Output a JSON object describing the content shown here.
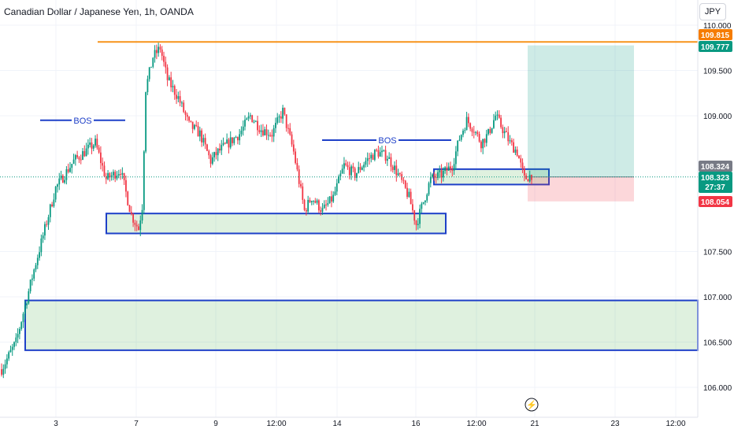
{
  "header": {
    "title": "Canadian Dollar / Japanese Yen, 1h, OANDA",
    "currency": "JPY"
  },
  "chart_data": {
    "type": "candlestick",
    "x_ticks": [
      "3",
      "7",
      "9",
      "12:00",
      "14",
      "16",
      "12:00",
      "21",
      "23",
      "12:00"
    ],
    "y_ticks": [
      "106.000",
      "106.500",
      "107.000",
      "107.500",
      "109.000",
      "109.500",
      "110.000"
    ],
    "ylim": [
      105.9,
      110.1
    ],
    "price_labels": {
      "resistance": "109.815",
      "take_profit": "109.777",
      "last": "108.324",
      "current": "108.323",
      "countdown": "27:37",
      "stop_loss": "108.054"
    },
    "annotations": [
      "BOS",
      "BOS"
    ],
    "levels": {
      "resistance": 109.815,
      "take_profit": 109.777,
      "entry": 108.324,
      "stop_loss": 108.054
    },
    "zones": [
      {
        "low": 107.7,
        "high": 107.92
      },
      {
        "low": 108.24,
        "high": 108.41
      },
      {
        "low": 106.41,
        "high": 106.96
      }
    ],
    "price_path": [
      [
        0,
        106.2
      ],
      [
        8,
        106.5
      ],
      [
        18,
        107.3
      ],
      [
        30,
        108.2
      ],
      [
        40,
        108.5
      ],
      [
        52,
        108.7
      ],
      [
        58,
        108.3
      ],
      [
        66,
        108.4
      ],
      [
        72,
        107.9
      ],
      [
        76,
        107.75
      ],
      [
        78,
        108.0
      ],
      [
        80,
        109.3
      ],
      [
        84,
        109.65
      ],
      [
        88,
        109.75
      ],
      [
        92,
        109.4
      ],
      [
        98,
        109.2
      ],
      [
        104,
        108.9
      ],
      [
        110,
        108.8
      ],
      [
        116,
        108.5
      ],
      [
        120,
        108.6
      ],
      [
        126,
        108.7
      ],
      [
        132,
        108.8
      ],
      [
        138,
        109.0
      ],
      [
        144,
        108.85
      ],
      [
        150,
        108.8
      ],
      [
        156,
        109.05
      ],
      [
        162,
        108.6
      ],
      [
        168,
        107.95
      ],
      [
        172,
        108.1
      ],
      [
        178,
        107.95
      ],
      [
        184,
        108.1
      ],
      [
        190,
        108.45
      ],
      [
        196,
        108.35
      ],
      [
        202,
        108.5
      ],
      [
        208,
        108.6
      ],
      [
        214,
        108.55
      ],
      [
        220,
        108.35
      ],
      [
        226,
        108.1
      ],
      [
        230,
        107.8
      ],
      [
        234,
        108.05
      ],
      [
        238,
        108.3
      ],
      [
        244,
        108.35
      ],
      [
        250,
        108.45
      ],
      [
        254,
        108.75
      ],
      [
        258,
        108.95
      ],
      [
        262,
        108.85
      ],
      [
        266,
        108.7
      ],
      [
        270,
        108.8
      ],
      [
        274,
        109.0
      ],
      [
        278,
        108.85
      ],
      [
        282,
        108.7
      ],
      [
        286,
        108.6
      ],
      [
        290,
        108.3
      ],
      [
        294,
        108.35
      ]
    ]
  }
}
